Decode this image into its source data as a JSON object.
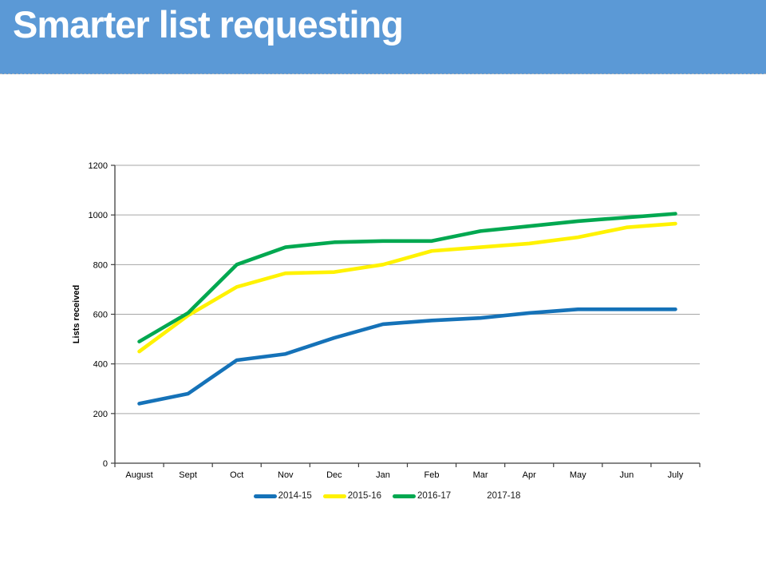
{
  "slide": {
    "title": "Smarter list requesting",
    "header_bg": "#5B99D6",
    "title_color": "#FFFFFF"
  },
  "chart_data": {
    "type": "line",
    "title": "",
    "xlabel": "",
    "ylabel": "Lists received",
    "ylim": [
      0,
      1200
    ],
    "yticks": [
      0,
      200,
      400,
      600,
      800,
      1000,
      1200
    ],
    "grid": true,
    "legend_position": "bottom",
    "categories": [
      "August",
      "Sept",
      "Oct",
      "Nov",
      "Dec",
      "Jan",
      "Feb",
      "Mar",
      "Apr",
      "May",
      "Jun",
      "July"
    ],
    "series": [
      {
        "name": "2014-15",
        "color": "#1572B8",
        "values": [
          240,
          280,
          415,
          440,
          505,
          560,
          575,
          585,
          605,
          620,
          620,
          620
        ]
      },
      {
        "name": "2015-16",
        "color": "#FFF200",
        "values": [
          450,
          595,
          710,
          765,
          770,
          800,
          855,
          870,
          885,
          910,
          950,
          965
        ]
      },
      {
        "name": "2016-17",
        "color": "#00A850",
        "values": [
          490,
          605,
          800,
          870,
          890,
          895,
          895,
          935,
          955,
          975,
          990,
          1005
        ]
      },
      {
        "name": "2017-18",
        "color": null,
        "values": []
      }
    ],
    "colors": {
      "axis": "#3f3f3f",
      "grid": "#a6a6a6",
      "tick_label": "#000000"
    }
  }
}
